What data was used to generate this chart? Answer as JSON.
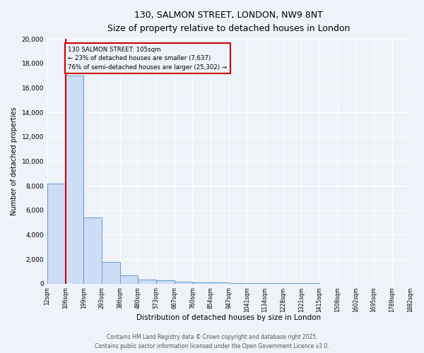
{
  "title1": "130, SALMON STREET, LONDON, NW9 8NT",
  "title2": "Size of property relative to detached houses in London",
  "xlabel": "Distribution of detached houses by size in London",
  "ylabel": "Number of detached properties",
  "bin_labels": [
    "12sqm",
    "106sqm",
    "199sqm",
    "293sqm",
    "386sqm",
    "480sqm",
    "573sqm",
    "667sqm",
    "760sqm",
    "854sqm",
    "947sqm",
    "1041sqm",
    "1134sqm",
    "1228sqm",
    "1321sqm",
    "1415sqm",
    "1508sqm",
    "1602sqm",
    "1695sqm",
    "1789sqm",
    "1882sqm"
  ],
  "counts": [
    8200,
    17000,
    5400,
    1800,
    700,
    350,
    280,
    180,
    120,
    80,
    55,
    40,
    28,
    20,
    14,
    10,
    7,
    5,
    4,
    3
  ],
  "property_bin": 1,
  "property_line_color": "#cc0000",
  "bar_color": "#ccddf5",
  "bar_edge_color": "#6699cc",
  "annotation_text": "130 SALMON STREET: 105sqm\n← 23% of detached houses are smaller (7,637)\n76% of semi-detached houses are larger (25,302) →",
  "annotation_box_color": "#cc0000",
  "ylim": [
    0,
    20000
  ],
  "yticks": [
    0,
    2000,
    4000,
    6000,
    8000,
    10000,
    12000,
    14000,
    16000,
    18000,
    20000
  ],
  "footer1": "Contains HM Land Registry data © Crown copyright and database right 2025.",
  "footer2": "Contains public sector information licensed under the Open Government Licence v3.0.",
  "bg_color": "#eef2f9",
  "grid_color": "#ffffff",
  "title1_fontsize": 9,
  "title2_fontsize": 8.5
}
